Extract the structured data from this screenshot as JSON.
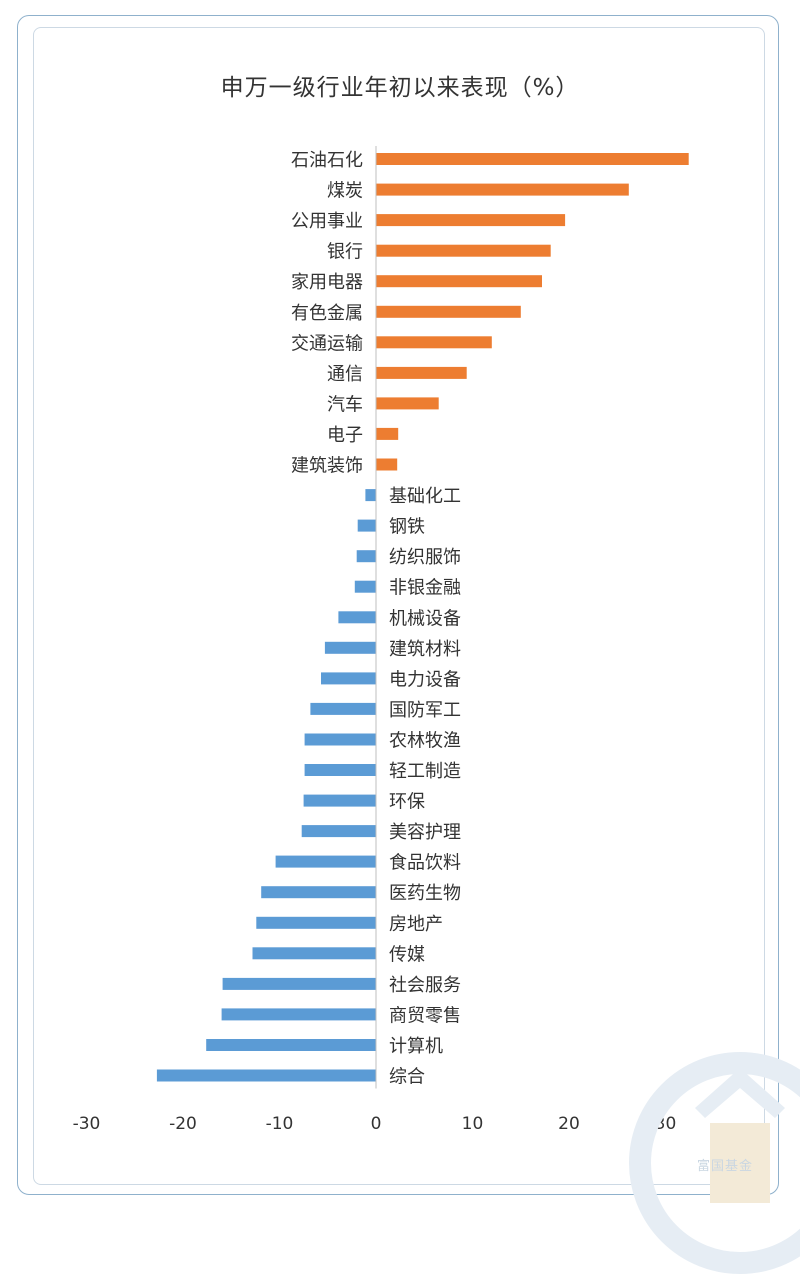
{
  "chart_data": {
    "type": "bar",
    "orientation": "horizontal",
    "title": "申万一级行业年初以来表现（%）",
    "xlim": [
      -30,
      30
    ],
    "xticks": [
      "-30",
      "-20",
      "-10",
      "0",
      "10",
      "20",
      "30"
    ],
    "categories": [
      "石油石化",
      "煤炭",
      "公用事业",
      "银行",
      "家用电器",
      "有色金属",
      "交通运输",
      "通信",
      "汽车",
      "电子",
      "建筑装饰",
      "基础化工",
      "钢铁",
      "纺织服饰",
      "非银金融",
      "机械设备",
      "建筑材料",
      "电力设备",
      "国防军工",
      "农林牧渔",
      "轻工制造",
      "环保",
      "美容护理",
      "食品饮料",
      "医药生物",
      "房地产",
      "传媒",
      "社会服务",
      "商贸零售",
      "计算机",
      "综合"
    ],
    "values": [
      32.4,
      26.2,
      19.6,
      18.1,
      17.2,
      15.0,
      12.0,
      9.4,
      6.5,
      2.3,
      2.2,
      -1.1,
      -1.9,
      -2.0,
      -2.2,
      -3.9,
      -5.3,
      -5.7,
      -6.8,
      -7.4,
      -7.4,
      -7.5,
      -7.7,
      -10.4,
      -11.9,
      -12.4,
      -12.8,
      -15.9,
      -16.0,
      -17.6,
      -22.7
    ],
    "colors": {
      "positive": "#ed7d31",
      "negative": "#5b9bd5",
      "axis": "#bfbfbf",
      "label": "#333333"
    },
    "grid": false,
    "legend": "none"
  },
  "watermark": {
    "brand": "富国基金"
  }
}
